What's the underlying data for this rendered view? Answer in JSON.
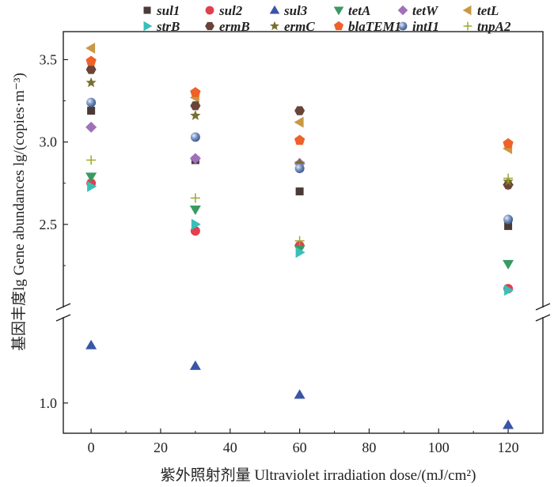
{
  "chart_data": {
    "type": "scatter",
    "xlabel": "紫外照射剂量 Ultraviolet irradiation dose/(mJ/cm²)",
    "ylabel": "基因丰度lg Gene abundances lg/(copies·m⁻³)",
    "xlim": [
      -8,
      130
    ],
    "xticks": [
      0,
      20,
      40,
      60,
      80,
      100,
      120
    ],
    "ylim_upper": [
      2.0,
      3.67
    ],
    "ylim_lower": [
      0.78,
      1.62
    ],
    "yticks": [
      "1.0",
      "2.5",
      "3.0",
      "3.5"
    ],
    "axis_break": true,
    "legend_position": "top",
    "x": [
      0,
      30,
      60,
      120
    ],
    "series": [
      {
        "name": "sul1",
        "marker": "square",
        "color": "#4a3a38",
        "values": [
          3.19,
          2.89,
          2.7,
          2.49
        ]
      },
      {
        "name": "sul2",
        "marker": "circle",
        "color": "#e04050",
        "values": [
          2.75,
          2.46,
          2.37,
          2.11
        ]
      },
      {
        "name": "sul3",
        "marker": "triangle-up",
        "color": "#3a55a8",
        "values": [
          1.42,
          1.27,
          1.06,
          0.84
        ]
      },
      {
        "name": "tetA",
        "marker": "triangle-down",
        "color": "#3a9a62",
        "values": [
          2.79,
          2.59,
          2.35,
          2.26
        ]
      },
      {
        "name": "tetW",
        "marker": "diamond",
        "color": "#a070b8",
        "values": [
          3.09,
          2.9,
          2.87,
          2.74
        ]
      },
      {
        "name": "tetL",
        "marker": "triangle-left",
        "color": "#c89844",
        "values": [
          3.57,
          3.27,
          3.12,
          2.96
        ]
      },
      {
        "name": "strB",
        "marker": "triangle-right",
        "color": "#38c0b8",
        "values": [
          2.73,
          2.5,
          2.33,
          2.1
        ]
      },
      {
        "name": "ermB",
        "marker": "hexagon",
        "color": "#6a4438",
        "values": [
          3.44,
          3.22,
          3.19,
          2.74
        ]
      },
      {
        "name": "ermC",
        "marker": "star",
        "color": "#7a6e2e",
        "values": [
          3.36,
          3.16,
          2.87,
          2.76
        ]
      },
      {
        "name": "blaTEM1",
        "marker": "pentagon",
        "color": "#f06028",
        "values": [
          3.49,
          3.3,
          3.01,
          2.99
        ]
      },
      {
        "name": "intI1",
        "marker": "sphere",
        "color": "#6a8ab8",
        "values": [
          3.24,
          3.03,
          2.84,
          2.53
        ]
      },
      {
        "name": "tnpA2",
        "marker": "plus",
        "color": "#9aaa30",
        "values": [
          2.89,
          2.66,
          2.4,
          2.78
        ]
      }
    ]
  }
}
